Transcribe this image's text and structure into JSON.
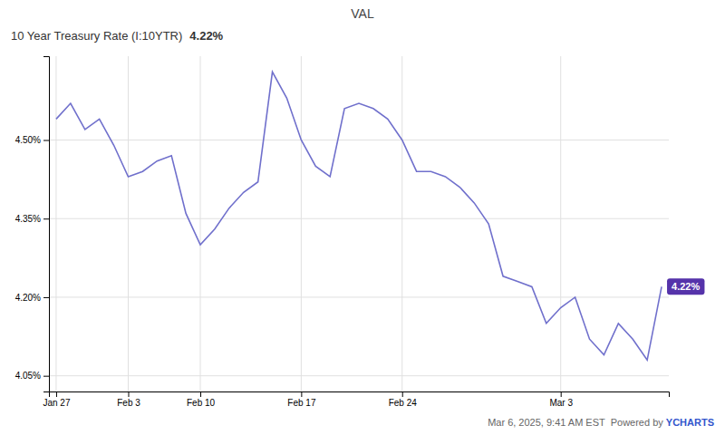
{
  "chart_data": {
    "type": "line",
    "title": "VAL",
    "subtitle": "10 Year Treasury Rate (I:10YTR)",
    "categories": [
      "Jan 27",
      null,
      null,
      null,
      null,
      "Feb 3",
      null,
      null,
      null,
      null,
      "Feb 10",
      null,
      null,
      null,
      null,
      null,
      null,
      "Feb 17",
      null,
      null,
      null,
      null,
      null,
      null,
      "Feb 24",
      null,
      null,
      null,
      null,
      null,
      null,
      null,
      null,
      null,
      null,
      "Mar 3",
      null,
      null,
      null,
      null,
      null,
      null,
      null
    ],
    "values": [
      4.54,
      4.57,
      4.52,
      4.54,
      4.49,
      4.43,
      4.44,
      4.46,
      4.47,
      4.36,
      4.3,
      4.33,
      4.37,
      4.4,
      4.42,
      4.63,
      4.58,
      4.5,
      4.45,
      4.43,
      4.56,
      4.57,
      4.56,
      4.54,
      4.5,
      4.44,
      4.44,
      4.43,
      4.41,
      4.38,
      4.34,
      4.24,
      4.23,
      4.22,
      4.15,
      4.18,
      4.2,
      4.12,
      4.09,
      4.15,
      4.12,
      4.08,
      4.22
    ],
    "color": "#7070cc",
    "ylim": [
      4.02,
      4.66
    ],
    "yticks": [
      {
        "value": 4.05,
        "label": "4.05%"
      },
      {
        "value": 4.2,
        "label": "4.20%"
      },
      {
        "value": 4.35,
        "label": "4.35%"
      },
      {
        "value": 4.5,
        "label": "4.50%"
      }
    ],
    "grid": true,
    "annotations": [
      {
        "text": "4.22%"
      },
      {
        "text": "4.22%",
        "y": 4.22,
        "color": "#5533aa"
      },
      {
        "text": "Mar 6, 2025, 9:41 AM EST  Powered by "
      },
      {
        "text": "YCHARTS",
        "color": "#3355cc"
      }
    ]
  }
}
